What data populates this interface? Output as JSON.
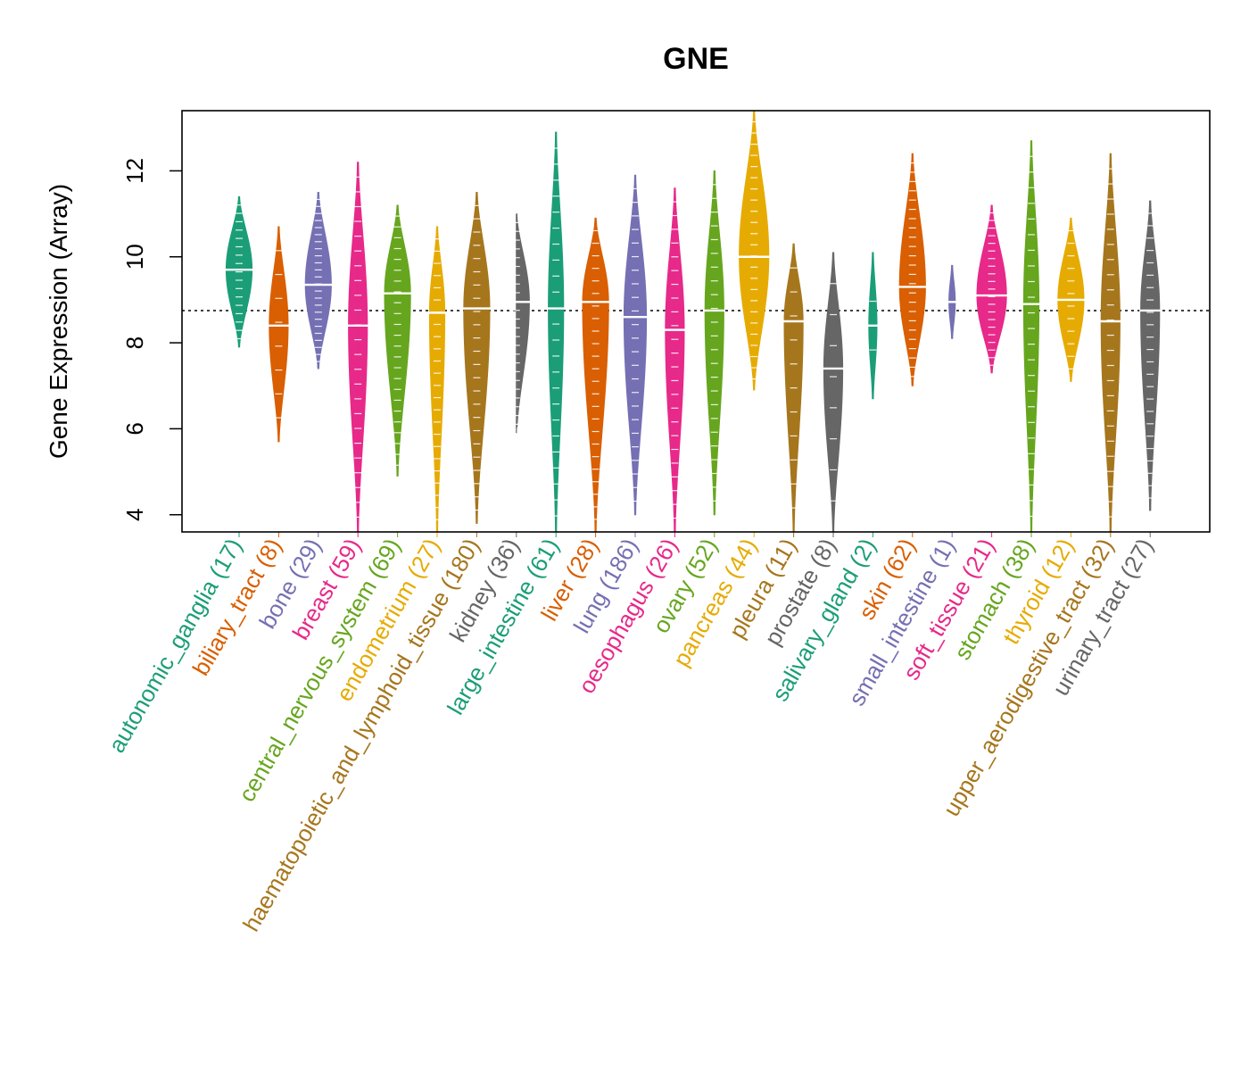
{
  "chart_data": {
    "type": "violin",
    "title": "GNE",
    "xlabel": "",
    "ylabel": "Gene Expression (Array)",
    "ylim": [
      3.6,
      13.4
    ],
    "yticks": [
      4,
      6,
      8,
      10,
      12
    ],
    "reference_line": 8.75,
    "palette": [
      "#1b9e77",
      "#d95f02",
      "#7570b3",
      "#e7298a",
      "#66a61e",
      "#e6ab02",
      "#a6761d",
      "#666666"
    ],
    "categories": [
      {
        "name": "autonomic_ganglia",
        "n": 17,
        "label": "autonomic_ganglia (17)",
        "median": 9.7,
        "min": 7.9,
        "max": 11.4,
        "halfwidth": 14
      },
      {
        "name": "biliary_tract",
        "n": 8,
        "label": "biliary_tract (8)",
        "median": 8.4,
        "min": 5.7,
        "max": 10.7,
        "halfwidth": 10
      },
      {
        "name": "bone",
        "n": 29,
        "label": "bone (29)",
        "median": 9.35,
        "min": 7.4,
        "max": 11.5,
        "halfwidth": 14
      },
      {
        "name": "breast",
        "n": 59,
        "label": "breast (59)",
        "median": 8.4,
        "min": 3.6,
        "max": 12.2,
        "halfwidth": 10
      },
      {
        "name": "central_nervous_system",
        "n": 69,
        "label": "central_nervous_system (69)",
        "median": 9.15,
        "min": 4.9,
        "max": 11.2,
        "halfwidth": 14
      },
      {
        "name": "endometrium",
        "n": 27,
        "label": "endometrium (27)",
        "median": 8.7,
        "min": 3.6,
        "max": 10.7,
        "halfwidth": 8
      },
      {
        "name": "haematopoietic_and_lymphoid_tissue",
        "n": 180,
        "label": "haematopoietic_and_lymphoid_tissue (180)",
        "median": 8.8,
        "min": 3.8,
        "max": 11.5,
        "halfwidth": 14
      },
      {
        "name": "kidney",
        "n": 36,
        "label": "kidney (36)",
        "median": 8.95,
        "min": 5.9,
        "max": 11.0,
        "halfwidth": 14
      },
      {
        "name": "large_intestine",
        "n": 61,
        "label": "large_intestine (61)",
        "median": 8.8,
        "min": 3.6,
        "max": 12.9,
        "halfwidth": 8
      },
      {
        "name": "liver",
        "n": 28,
        "label": "liver (28)",
        "median": 8.95,
        "min": 3.6,
        "max": 10.9,
        "halfwidth": 14
      },
      {
        "name": "lung",
        "n": 186,
        "label": "lung (186)",
        "median": 8.6,
        "min": 4.0,
        "max": 11.9,
        "halfwidth": 12
      },
      {
        "name": "oesophagus",
        "n": 26,
        "label": "oesophagus (26)",
        "median": 8.3,
        "min": 3.6,
        "max": 11.6,
        "halfwidth": 10
      },
      {
        "name": "ovary",
        "n": 52,
        "label": "ovary (52)",
        "median": 8.75,
        "min": 4.0,
        "max": 12.0,
        "halfwidth": 10
      },
      {
        "name": "pancreas",
        "n": 44,
        "label": "pancreas (44)",
        "median": 10.0,
        "min": 6.9,
        "max": 13.4,
        "halfwidth": 16
      },
      {
        "name": "pleura",
        "n": 11,
        "label": "pleura (11)",
        "median": 8.5,
        "min": 3.6,
        "max": 10.3,
        "halfwidth": 10
      },
      {
        "name": "prostate",
        "n": 8,
        "label": "prostate (8)",
        "median": 7.4,
        "min": 3.6,
        "max": 10.1,
        "halfwidth": 10
      },
      {
        "name": "salivary_gland",
        "n": 2,
        "label": "salivary_gland (2)",
        "median": 8.4,
        "min": 6.7,
        "max": 10.1,
        "halfwidth": 4
      },
      {
        "name": "skin",
        "n": 62,
        "label": "skin (62)",
        "median": 9.3,
        "min": 7.0,
        "max": 12.4,
        "halfwidth": 14
      },
      {
        "name": "small_intestine",
        "n": 1,
        "label": "small_intestine (1)",
        "median": 8.95,
        "min": 8.1,
        "max": 9.8,
        "halfwidth": 3
      },
      {
        "name": "soft_tissue",
        "n": 21,
        "label": "soft_tissue (21)",
        "median": 9.1,
        "min": 7.3,
        "max": 11.2,
        "halfwidth": 16
      },
      {
        "name": "stomach",
        "n": 38,
        "label": "stomach (38)",
        "median": 8.9,
        "min": 3.6,
        "max": 12.7,
        "halfwidth": 8
      },
      {
        "name": "thyroid",
        "n": 12,
        "label": "thyroid (12)",
        "median": 9.0,
        "min": 7.1,
        "max": 10.9,
        "halfwidth": 14
      },
      {
        "name": "upper_aerodigestive_tract",
        "n": 32,
        "label": "upper_aerodigestive_tract (32)",
        "median": 8.5,
        "min": 3.6,
        "max": 12.4,
        "halfwidth": 10
      },
      {
        "name": "urinary_tract",
        "n": 27,
        "label": "urinary_tract (27)",
        "median": 8.75,
        "min": 4.1,
        "max": 11.3,
        "halfwidth": 10
      }
    ]
  }
}
